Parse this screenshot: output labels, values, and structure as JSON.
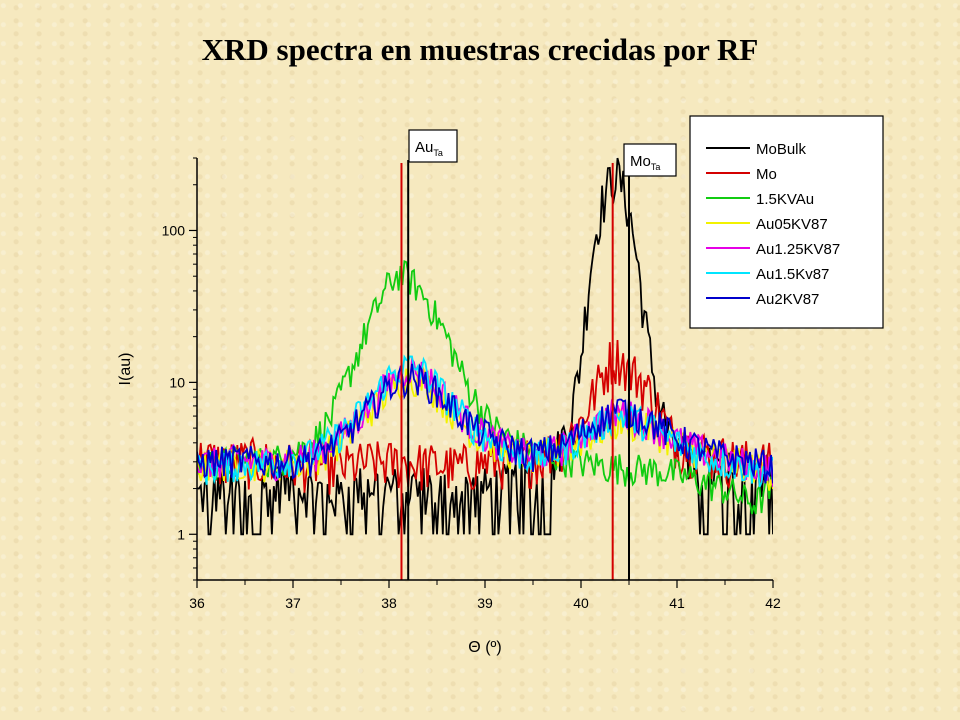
{
  "title": "XRD spectra en muestras crecidas por RF",
  "chart_data": {
    "type": "line",
    "xlabel": "Θ (º)",
    "ylabel": "I(au)",
    "xlim": [
      36,
      42
    ],
    "ylim": [
      0.5,
      300
    ],
    "yscale": "log",
    "xticks": [
      "36",
      "37",
      "38",
      "39",
      "40",
      "41",
      "42"
    ],
    "yticks": [
      {
        "value": 1,
        "label": "1"
      },
      {
        "value": 10,
        "label": "10"
      },
      {
        "value": 100,
        "label": "100"
      }
    ],
    "legend_position": "top-right",
    "annotations": [
      {
        "main": "Au",
        "sub": "Ta",
        "x": 38.2
      },
      {
        "main": "Mo",
        "sub": "Ta",
        "x": 40.5
      }
    ],
    "reference_lines": [
      {
        "x": 38.13,
        "color": "#d40000"
      },
      {
        "x": 38.2,
        "color": "#000000"
      },
      {
        "x": 40.33,
        "color": "#d40000"
      },
      {
        "x": 40.5,
        "color": "#000000"
      }
    ],
    "series": [
      {
        "name": "MoBulk",
        "color": "#000000",
        "x": [
          36.0,
          36.3,
          36.6,
          36.9,
          37.2,
          37.5,
          37.8,
          38.1,
          38.4,
          38.7,
          39.0,
          39.3,
          39.6,
          39.75,
          39.9,
          40.0,
          40.1,
          40.2,
          40.3,
          40.35,
          40.4,
          40.5,
          40.6,
          40.7,
          40.8,
          40.9,
          41.0,
          41.3,
          41.6,
          41.9,
          42.0
        ],
        "y": [
          1.8,
          2.1,
          1.9,
          2.2,
          2.0,
          1.8,
          2.2,
          2.0,
          2.1,
          1.9,
          2.0,
          2.2,
          2.4,
          3.5,
          6.0,
          15.0,
          60.0,
          140.0,
          210.0,
          240.0,
          220.0,
          140.0,
          55.0,
          18.0,
          8.0,
          5.0,
          3.5,
          2.8,
          2.5,
          2.6,
          2.5
        ]
      },
      {
        "name": "Mo",
        "color": "#d40000",
        "x": [
          36.0,
          36.3,
          36.6,
          36.9,
          37.2,
          37.5,
          37.8,
          38.1,
          38.4,
          38.7,
          39.0,
          39.3,
          39.6,
          39.8,
          40.0,
          40.15,
          40.3,
          40.4,
          40.5,
          40.6,
          40.75,
          40.9,
          41.0,
          41.3,
          41.6,
          41.9,
          42.0
        ],
        "y": [
          3.2,
          3.0,
          3.1,
          2.9,
          3.0,
          2.8,
          3.0,
          3.0,
          2.9,
          2.8,
          3.0,
          3.1,
          3.3,
          4.0,
          5.5,
          9.0,
          14.0,
          15.0,
          12.0,
          11.0,
          8.0,
          5.0,
          4.0,
          3.5,
          3.1,
          3.0,
          2.9
        ]
      },
      {
        "name": "1.5KVAu",
        "color": "#11cc11",
        "x": [
          36.0,
          36.3,
          36.6,
          36.9,
          37.2,
          37.4,
          37.6,
          37.8,
          38.0,
          38.1,
          38.2,
          38.4,
          38.6,
          38.8,
          39.0,
          39.2,
          39.4,
          39.6,
          39.8,
          40.0,
          40.3,
          40.6,
          40.9,
          41.2,
          41.5,
          41.8,
          42.0
        ],
        "y": [
          2.9,
          3.0,
          3.0,
          3.2,
          4.0,
          6.0,
          12.0,
          25.0,
          45.0,
          52.0,
          50.0,
          35.0,
          20.0,
          10.0,
          6.0,
          4.5,
          3.8,
          3.5,
          3.2,
          3.0,
          2.8,
          2.7,
          2.6,
          2.3,
          2.0,
          1.6,
          2.0
        ]
      },
      {
        "name": "Au05KV87",
        "color": "#f2f200",
        "x": [
          36.0,
          36.4,
          36.8,
          37.2,
          37.5,
          37.8,
          38.0,
          38.2,
          38.4,
          38.6,
          38.9,
          39.2,
          39.5,
          39.8,
          40.1,
          40.4,
          40.7,
          41.0,
          41.4,
          41.8,
          42.0
        ],
        "y": [
          2.8,
          3.0,
          2.9,
          3.1,
          4.0,
          6.5,
          9.0,
          11.0,
          10.0,
          7.0,
          4.5,
          3.6,
          3.2,
          3.5,
          4.5,
          5.5,
          5.0,
          4.0,
          3.2,
          2.8,
          2.5
        ]
      },
      {
        "name": "Au1.25KV87",
        "color": "#e600e6",
        "x": [
          36.0,
          36.4,
          36.8,
          37.2,
          37.5,
          37.8,
          38.0,
          38.2,
          38.4,
          38.6,
          38.9,
          39.2,
          39.5,
          39.8,
          40.1,
          40.4,
          40.7,
          41.0,
          41.4,
          41.8,
          42.0
        ],
        "y": [
          2.9,
          3.1,
          3.0,
          3.3,
          4.5,
          7.0,
          10.0,
          12.5,
          11.0,
          8.0,
          5.0,
          3.8,
          3.3,
          3.7,
          5.0,
          6.5,
          5.5,
          4.2,
          3.3,
          2.9,
          2.7
        ]
      },
      {
        "name": "Au1.5Kv87",
        "color": "#00e5ff",
        "x": [
          36.0,
          36.4,
          36.8,
          37.2,
          37.5,
          37.8,
          38.0,
          38.2,
          38.4,
          38.6,
          38.9,
          39.2,
          39.5,
          39.8,
          40.1,
          40.4,
          40.7,
          41.0,
          41.4,
          41.8,
          42.0
        ],
        "y": [
          2.7,
          2.9,
          3.0,
          3.4,
          4.6,
          7.5,
          11.0,
          13.0,
          11.5,
          8.0,
          5.0,
          3.7,
          3.2,
          3.6,
          4.8,
          6.2,
          5.3,
          4.0,
          3.1,
          2.7,
          2.6
        ]
      },
      {
        "name": "Au2KV87",
        "color": "#0000cc",
        "x": [
          36.0,
          36.4,
          36.8,
          37.2,
          37.5,
          37.8,
          38.0,
          38.2,
          38.4,
          38.6,
          38.9,
          39.2,
          39.5,
          39.8,
          40.1,
          40.4,
          40.7,
          41.0,
          41.4,
          41.8,
          42.0
        ],
        "y": [
          3.0,
          3.1,
          3.0,
          3.2,
          4.2,
          6.8,
          9.5,
          11.0,
          10.0,
          7.5,
          5.0,
          3.9,
          3.4,
          3.8,
          5.2,
          6.8,
          5.8,
          4.3,
          3.4,
          3.0,
          2.8
        ]
      }
    ]
  }
}
